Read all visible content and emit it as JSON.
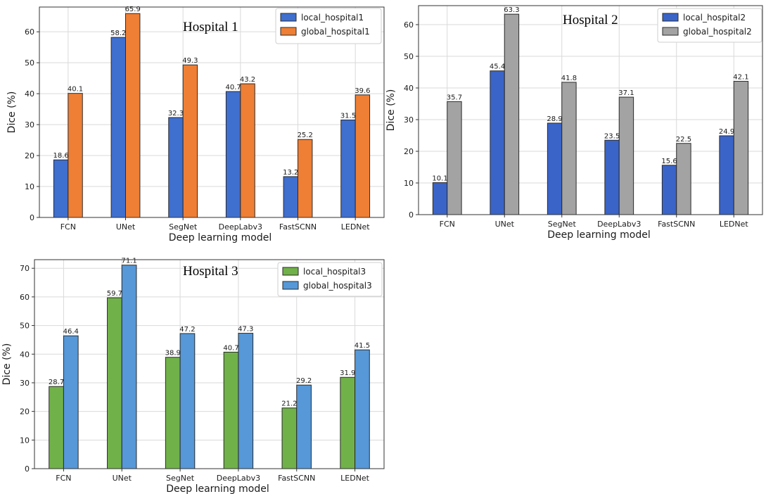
{
  "chart_data": [
    {
      "type": "bar",
      "title": "Hospital 1",
      "xlabel": "Deep learning model",
      "ylabel": "Dice (%)",
      "ylim": [
        0,
        68
      ],
      "yticks": [
        0,
        10,
        20,
        30,
        40,
        50,
        60
      ],
      "grid": true,
      "legend_position": "top-right",
      "categories": [
        "FCN",
        "UNet",
        "SegNet",
        "DeepLabv3",
        "FastSCNN",
        "LEDNet"
      ],
      "series": [
        {
          "name": "local_hospital1",
          "color": "#3f6fcf",
          "values": [
            18.6,
            58.2,
            32.3,
            40.7,
            13.2,
            31.5
          ]
        },
        {
          "name": "global_hospital1",
          "color": "#ee7f35",
          "values": [
            40.1,
            65.9,
            49.3,
            43.2,
            25.2,
            39.6
          ]
        }
      ]
    },
    {
      "type": "bar",
      "title": "Hospital 2",
      "xlabel": "Deep learning model",
      "ylabel": "Dice (%)",
      "ylim": [
        0,
        66
      ],
      "yticks": [
        0,
        10,
        20,
        30,
        40,
        50,
        60
      ],
      "grid": true,
      "legend_position": "top-right",
      "categories": [
        "FCN",
        "UNet",
        "SegNet",
        "DeepLabv3",
        "FastSCNN",
        "LEDNet"
      ],
      "series": [
        {
          "name": "local_hospital2",
          "color": "#3a64c8",
          "values": [
            10.1,
            45.4,
            28.9,
            23.5,
            15.6,
            24.9
          ]
        },
        {
          "name": "global_hospital2",
          "color": "#a3a3a3",
          "values": [
            35.7,
            63.3,
            41.8,
            37.1,
            22.5,
            42.1
          ]
        }
      ]
    },
    {
      "type": "bar",
      "title": "Hospital 3",
      "xlabel": "Deep learning model",
      "ylabel": "Dice (%)",
      "ylim": [
        0,
        73
      ],
      "yticks": [
        0,
        10,
        20,
        30,
        40,
        50,
        60,
        70
      ],
      "grid": true,
      "legend_position": "top-right",
      "categories": [
        "FCN",
        "UNet",
        "SegNet",
        "DeepLabv3",
        "FastSCNN",
        "LEDNet"
      ],
      "series": [
        {
          "name": "local_hospital3",
          "color": "#71b149",
          "values": [
            28.7,
            59.7,
            38.9,
            40.7,
            21.2,
            31.9
          ]
        },
        {
          "name": "global_hospital3",
          "color": "#5698d8",
          "values": [
            46.4,
            71.1,
            47.2,
            47.3,
            29.2,
            41.5
          ]
        }
      ]
    }
  ]
}
